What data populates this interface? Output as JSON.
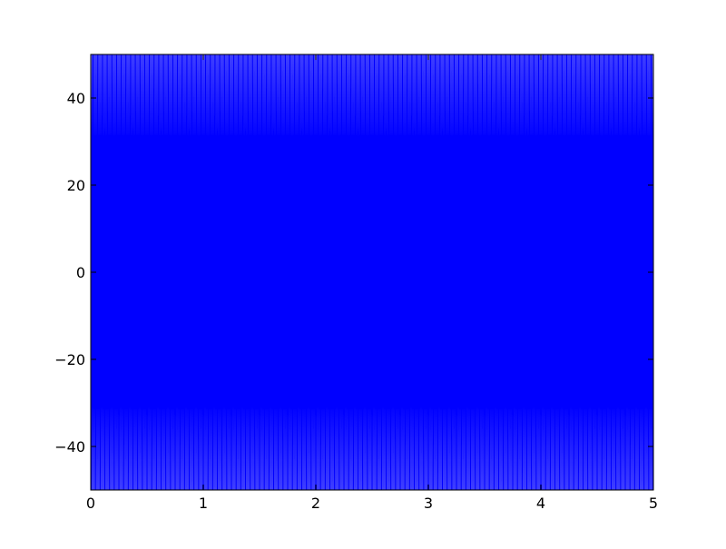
{
  "chart_data": {
    "type": "line",
    "title": "",
    "xlabel": "",
    "ylabel": "",
    "xlim": [
      0,
      5
    ],
    "ylim": [
      -50,
      50
    ],
    "xticks": [
      0,
      1,
      2,
      3,
      4,
      5
    ],
    "xtick_labels": [
      "0",
      "1",
      "2",
      "3",
      "4",
      "5"
    ],
    "yticks": [
      -40,
      -20,
      0,
      20,
      40
    ],
    "ytick_labels": [
      "−40",
      "−20",
      "0",
      "20",
      "40"
    ],
    "grid": false,
    "legend": "none",
    "series": [
      {
        "color": "#0000ff",
        "description_of_shape": "dense vertical oscillation filling the full y-range",
        "samples": 1000,
        "x_range": [
          0,
          5
        ],
        "y_range": [
          -50,
          50
        ],
        "oscillations": 500
      }
    ]
  }
}
